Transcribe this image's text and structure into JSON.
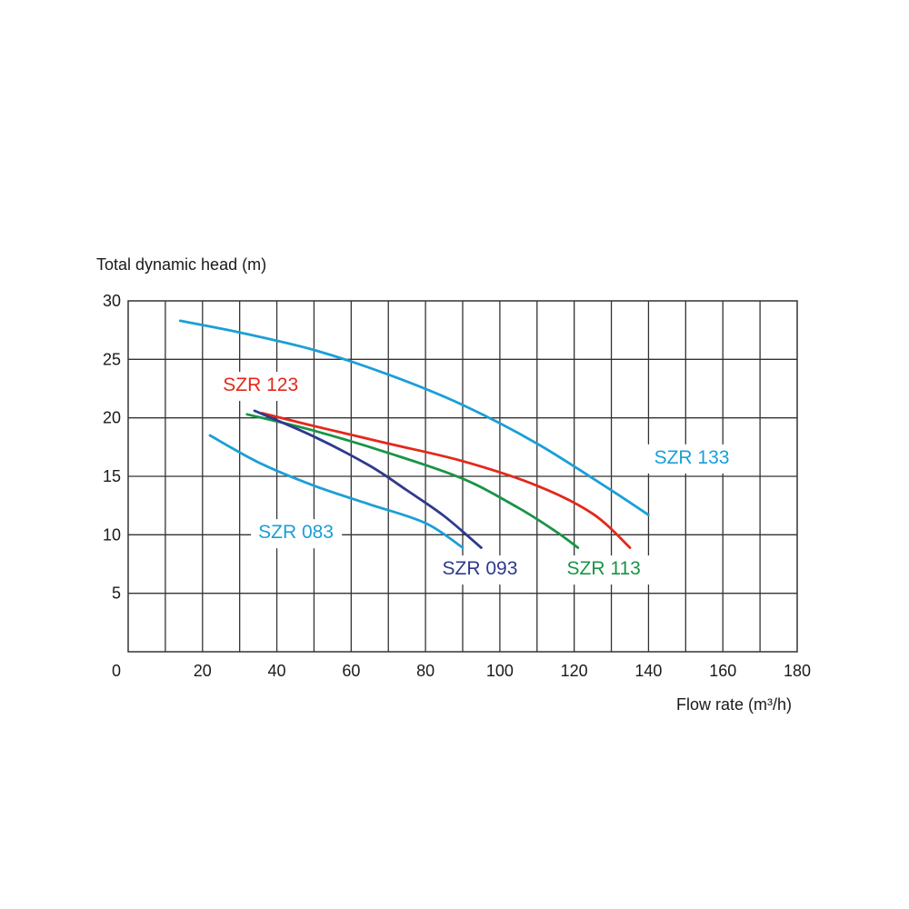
{
  "chart_data": {
    "type": "line",
    "ylabel": "Total dynamic head (m)",
    "xlabel": "Flow rate (m³/h)",
    "xlim": [
      0,
      180
    ],
    "ylim": [
      0,
      30
    ],
    "x_ticks": [
      0,
      20,
      40,
      60,
      80,
      100,
      120,
      140,
      160,
      180
    ],
    "y_ticks": [
      5,
      10,
      15,
      20,
      25,
      30
    ],
    "grid": true,
    "grid_step_x": 10,
    "grid_step_y": 5,
    "legend": "inline labels",
    "series": [
      {
        "name": "SZR 133",
        "color": "#1a9fd6",
        "points": [
          [
            14,
            28.3
          ],
          [
            30,
            27.3
          ],
          [
            50,
            25.8
          ],
          [
            70,
            23.7
          ],
          [
            90,
            21.1
          ],
          [
            110,
            17.8
          ],
          [
            130,
            13.8
          ],
          [
            140,
            11.7
          ]
        ],
        "label_at": [
          141.5,
          16.1
        ]
      },
      {
        "name": "SZR 123",
        "color": "#e3281b",
        "points": [
          [
            36,
            20.4
          ],
          [
            50,
            19.3
          ],
          [
            70,
            17.8
          ],
          [
            90,
            16.3
          ],
          [
            110,
            14.2
          ],
          [
            125,
            11.8
          ],
          [
            135,
            8.9
          ]
        ],
        "label_at": [
          25.5,
          22.3
        ]
      },
      {
        "name": "SZR 113",
        "color": "#199447",
        "points": [
          [
            32,
            20.3
          ],
          [
            50,
            18.9
          ],
          [
            70,
            17.0
          ],
          [
            90,
            14.8
          ],
          [
            105,
            12.3
          ],
          [
            115,
            10.3
          ],
          [
            121,
            8.9
          ]
        ],
        "label_at": [
          118,
          6.6
        ]
      },
      {
        "name": "SZR 093",
        "color": "#2e3a8c",
        "points": [
          [
            34,
            20.6
          ],
          [
            50,
            18.4
          ],
          [
            65,
            15.9
          ],
          [
            75,
            13.8
          ],
          [
            85,
            11.6
          ],
          [
            95,
            8.9
          ]
        ],
        "label_at": [
          84.5,
          6.6
        ]
      },
      {
        "name": "SZR 083",
        "color": "#1a9fd6",
        "points": [
          [
            22,
            18.5
          ],
          [
            35,
            16.2
          ],
          [
            50,
            14.2
          ],
          [
            65,
            12.6
          ],
          [
            80,
            11.0
          ],
          [
            90,
            8.9
          ]
        ],
        "label_at": [
          35,
          9.7
        ]
      }
    ]
  }
}
